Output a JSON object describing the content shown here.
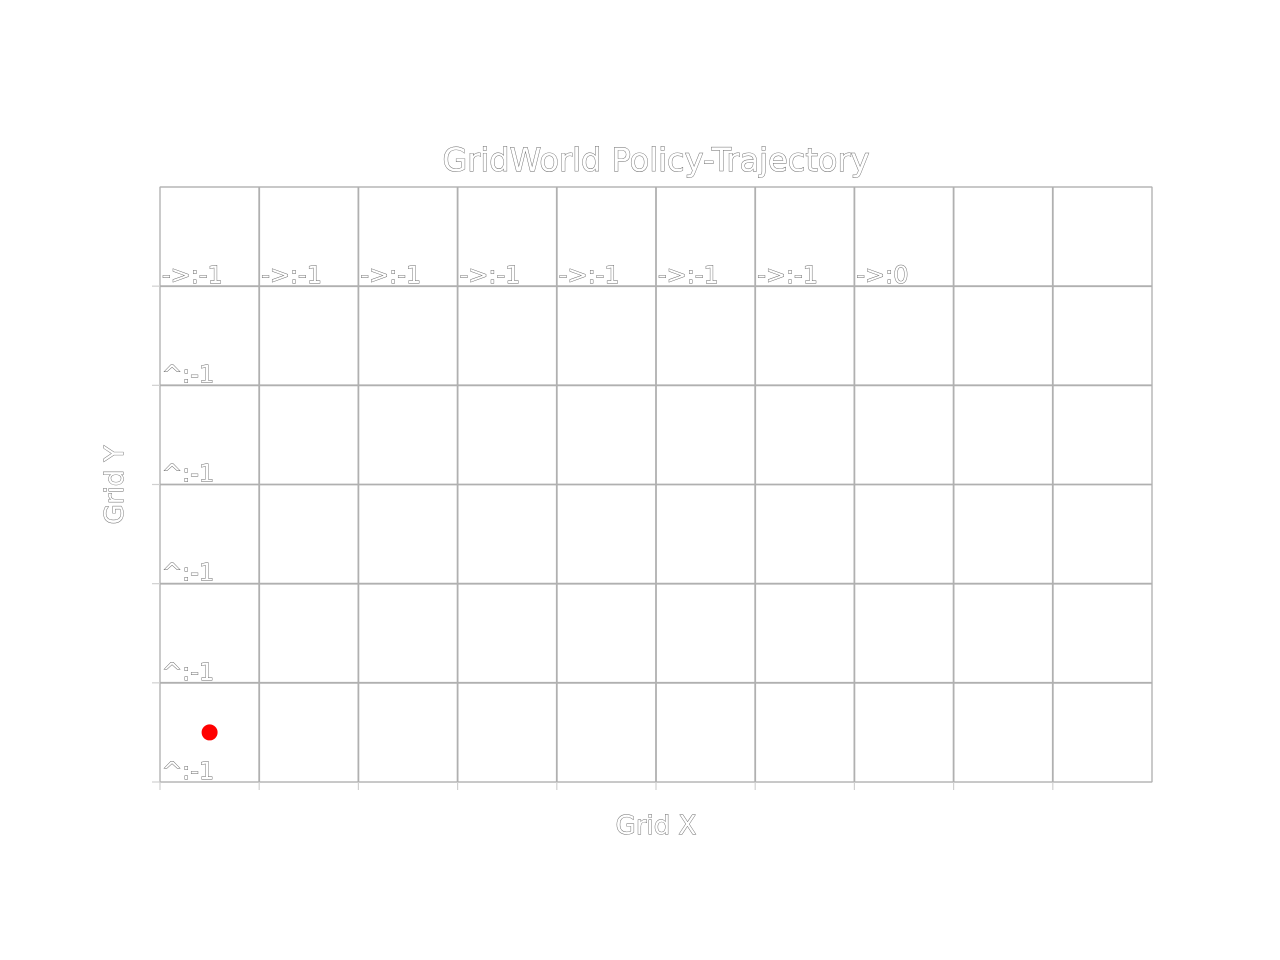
{
  "chart_data": {
    "type": "scatter",
    "title": "GridWorld Policy-Trajectory",
    "xlabel": "Grid X",
    "ylabel": "Grid Y",
    "xlim": [
      0,
      10
    ],
    "ylim": [
      0,
      6
    ],
    "grid": true,
    "grid_cols": 10,
    "grid_rows": 6,
    "x_ticks": [
      0,
      1,
      2,
      3,
      4,
      5,
      6,
      7,
      8,
      9
    ],
    "y_ticks": [
      0,
      1,
      2,
      3,
      4,
      5
    ],
    "show_tick_labels": false,
    "annotations": [
      {
        "x": 0,
        "y": 0,
        "text": "^:-1"
      },
      {
        "x": 0,
        "y": 1,
        "text": "^:-1"
      },
      {
        "x": 0,
        "y": 2,
        "text": "^:-1"
      },
      {
        "x": 0,
        "y": 3,
        "text": "^:-1"
      },
      {
        "x": 0,
        "y": 4,
        "text": "^:-1"
      },
      {
        "x": 0,
        "y": 5,
        "text": "->:-1"
      },
      {
        "x": 1,
        "y": 5,
        "text": "->:-1"
      },
      {
        "x": 2,
        "y": 5,
        "text": "->:-1"
      },
      {
        "x": 3,
        "y": 5,
        "text": "->:-1"
      },
      {
        "x": 4,
        "y": 5,
        "text": "->:-1"
      },
      {
        "x": 5,
        "y": 5,
        "text": "->:-1"
      },
      {
        "x": 6,
        "y": 5,
        "text": "->:-1"
      },
      {
        "x": 7,
        "y": 5,
        "text": "->:0"
      }
    ],
    "points": [
      {
        "x": 0.5,
        "y": 0.5,
        "color": "#ff0000"
      }
    ],
    "colors": {
      "grid": "#b0b0b0",
      "text": "#666666",
      "marker": "#ff0000"
    }
  }
}
